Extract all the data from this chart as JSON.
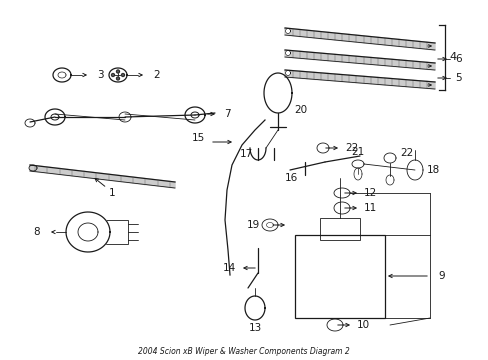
{
  "title": "2004 Scion xB Wiper & Washer Components Diagram 2",
  "bg_color": "#ffffff",
  "line_color": "#1a1a1a",
  "figsize": [
    4.89,
    3.6
  ],
  "dpi": 100,
  "border_color": "#888888",
  "gray_fill": "#999999",
  "blade_fill": "#777777"
}
